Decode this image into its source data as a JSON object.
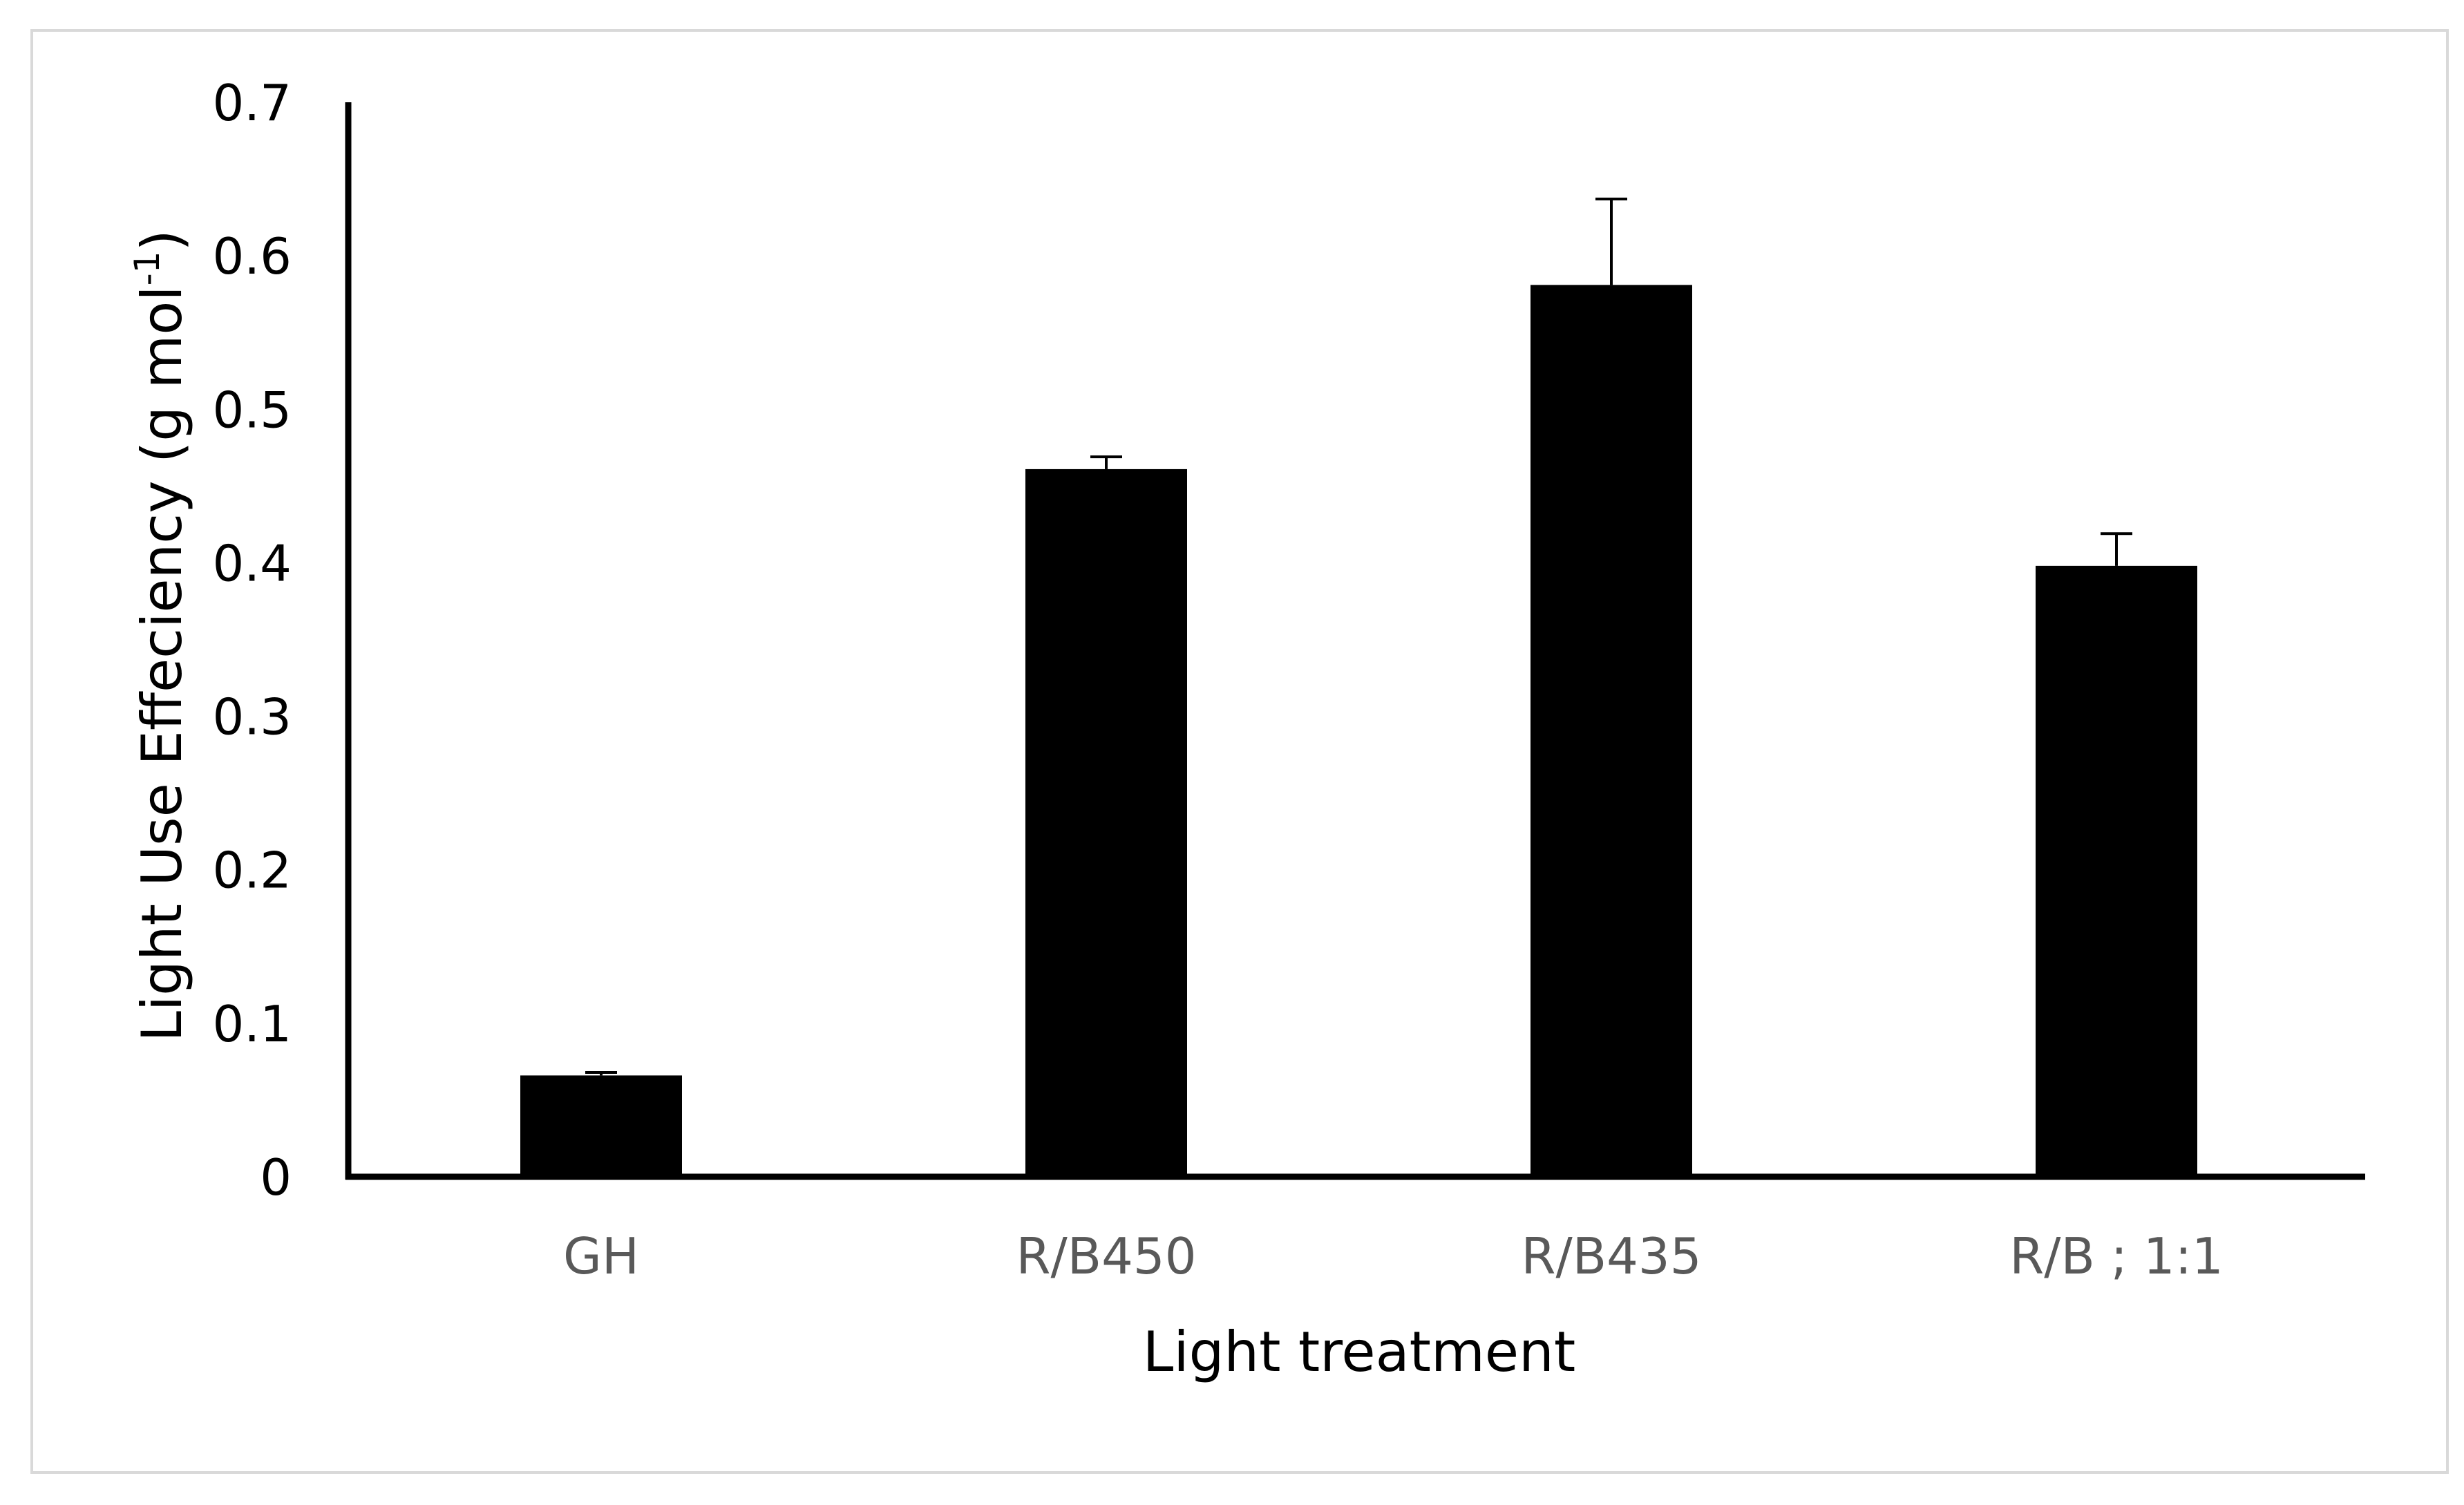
{
  "chart_data": {
    "type": "bar",
    "categories": [
      "GH",
      "R/B450",
      "R/B435",
      "R/B ; 1:1"
    ],
    "values": [
      0.066,
      0.461,
      0.581,
      0.398
    ],
    "errors": [
      0.002,
      0.008,
      0.056,
      0.021
    ],
    "xlabel": "Light treatment",
    "ylabel": {
      "prefix": "Light Use Effeciency (g mol",
      "superscript": "-1",
      "suffix": ")"
    },
    "ylim": [
      0,
      0.7
    ],
    "yticks": [
      "0",
      "0.1",
      "0.2",
      "0.3",
      "0.4",
      "0.5",
      "0.6",
      "0.7"
    ],
    "grid": false,
    "legend": "none",
    "bar_color": "#000000",
    "error_color": "#000000",
    "axis_color": "#000000",
    "tick_label_color": "#000000",
    "category_label_color": "#595959",
    "xlabel_color": "#000000",
    "ylabel_color": "#000000",
    "frame_color": "#d9d9d9"
  }
}
